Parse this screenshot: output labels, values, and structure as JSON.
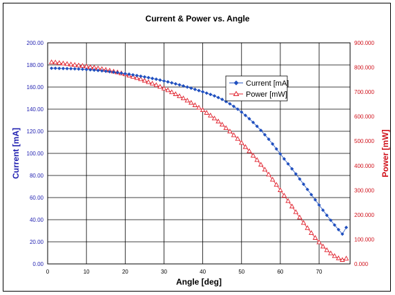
{
  "chart_data": {
    "type": "line",
    "title": "Current & Power vs. Angle",
    "xlabel": "Angle [deg]",
    "ylabel_left": "Current [mA]",
    "ylabel_right": "Power [mW]",
    "xlim": [
      0,
      78
    ],
    "ylim_left": [
      0,
      200
    ],
    "ylim_right": [
      0,
      900
    ],
    "xticks": [
      "0",
      "10",
      "20",
      "30",
      "40",
      "50",
      "60",
      "70"
    ],
    "yticks_left": [
      "0.00",
      "20.00",
      "40.00",
      "60.00",
      "80.00",
      "100.00",
      "120.00",
      "140.00",
      "160.00",
      "180.00",
      "200.00"
    ],
    "yticks_right": [
      "0.000",
      "100.000",
      "200.000",
      "300.000",
      "400.000",
      "500.000",
      "600.000",
      "700.000",
      "800.000",
      "900.000"
    ],
    "grid": true,
    "legend_position": "center-right",
    "colors": {
      "current": "#1f4fbf",
      "power": "#e0202c",
      "left_axis": "#1f1fb0",
      "right_axis": "#d0101a"
    },
    "x": [
      1,
      2,
      3,
      4,
      5,
      6,
      7,
      8,
      9,
      10,
      11,
      12,
      13,
      14,
      15,
      16,
      17,
      18,
      19,
      20,
      21,
      22,
      23,
      24,
      25,
      26,
      27,
      28,
      29,
      30,
      31,
      32,
      33,
      34,
      35,
      36,
      37,
      38,
      39,
      40,
      41,
      42,
      43,
      44,
      45,
      46,
      47,
      48,
      49,
      50,
      51,
      52,
      53,
      54,
      55,
      56,
      57,
      58,
      59,
      60,
      61,
      62,
      63,
      64,
      65,
      66,
      67,
      68,
      69,
      70,
      71,
      72,
      73,
      74,
      75,
      76,
      77
    ],
    "series": [
      {
        "name": "Current [mA]",
        "axis": "left",
        "marker": "diamond",
        "values": [
          177.0,
          177.0,
          176.9,
          176.8,
          176.7,
          176.6,
          176.5,
          176.3,
          176.1,
          175.9,
          175.6,
          175.3,
          175.0,
          174.7,
          174.3,
          173.9,
          173.5,
          173.1,
          172.6,
          172.1,
          171.6,
          171.0,
          170.4,
          169.8,
          169.2,
          168.5,
          167.8,
          167.1,
          166.3,
          165.5,
          164.7,
          163.8,
          162.9,
          162.0,
          161.0,
          160.0,
          159.0,
          157.9,
          156.8,
          155.7,
          154.5,
          153.3,
          152.0,
          150.5,
          148.8,
          146.9,
          144.8,
          142.5,
          140.0,
          137.3,
          134.4,
          131.3,
          128.0,
          124.5,
          120.8,
          116.9,
          112.8,
          108.5,
          104.0,
          99.5,
          95.0,
          90.5,
          86.0,
          81.4,
          76.8,
          72.1,
          67.4,
          62.7,
          58.0,
          53.3,
          48.6,
          44.0,
          39.5,
          35.2,
          31.0,
          27.0,
          33.0
        ]
      },
      {
        "name": "Power  [mW]",
        "axis": "right",
        "marker": "triangle",
        "values": [
          821,
          820,
          818,
          816,
          814,
          812,
          810,
          808,
          806,
          804,
          801,
          799,
          796,
          793,
          790,
          787,
          783,
          780,
          776,
          772,
          767,
          762,
          757,
          752,
          746,
          740,
          734,
          728,
          721,
          714,
          707,
          699,
          691,
          683,
          674,
          665,
          656,
          646,
          636,
          626,
          615,
          604,
          592,
          580,
          567,
          553,
          539,
          524,
          509,
          493,
          476,
          459,
          441,
          423,
          404,
          384,
          364,
          343,
          322,
          300,
          278,
          256,
          234,
          211,
          189,
          167,
          146,
          126,
          106,
          88,
          71,
          56,
          43,
          32,
          23,
          16,
          22
        ]
      }
    ]
  }
}
